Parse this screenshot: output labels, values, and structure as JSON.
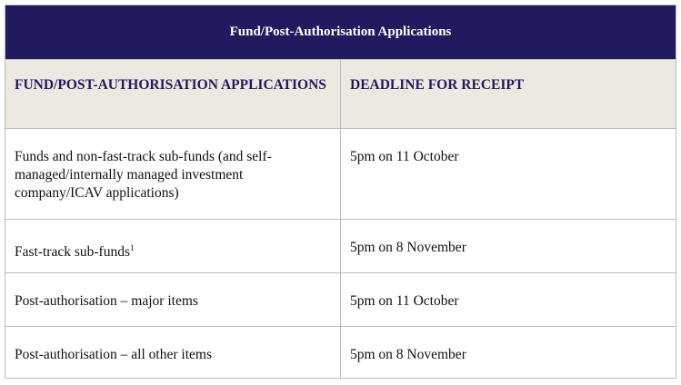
{
  "title": "Fund/Post-Authorisation Applications",
  "columns": [
    "FUND/POST-AUTHORISATION APPLICATIONS",
    "DEADLINE FOR RECEIPT"
  ],
  "rows": [
    {
      "application": "Funds and non-fast-track sub-funds (and self-managed/internally managed investment company/ICAV applications)",
      "footnote": "",
      "deadline": "5pm on 11 October"
    },
    {
      "application": "Fast-track sub-funds",
      "footnote": "1",
      "deadline": "5pm on 8 November"
    },
    {
      "application": "Post-authorisation – major items",
      "footnote": "",
      "deadline": "5pm on 11 October"
    },
    {
      "application": "Post-authorisation – all other items",
      "footnote": "",
      "deadline": "5pm on 8 November"
    }
  ]
}
